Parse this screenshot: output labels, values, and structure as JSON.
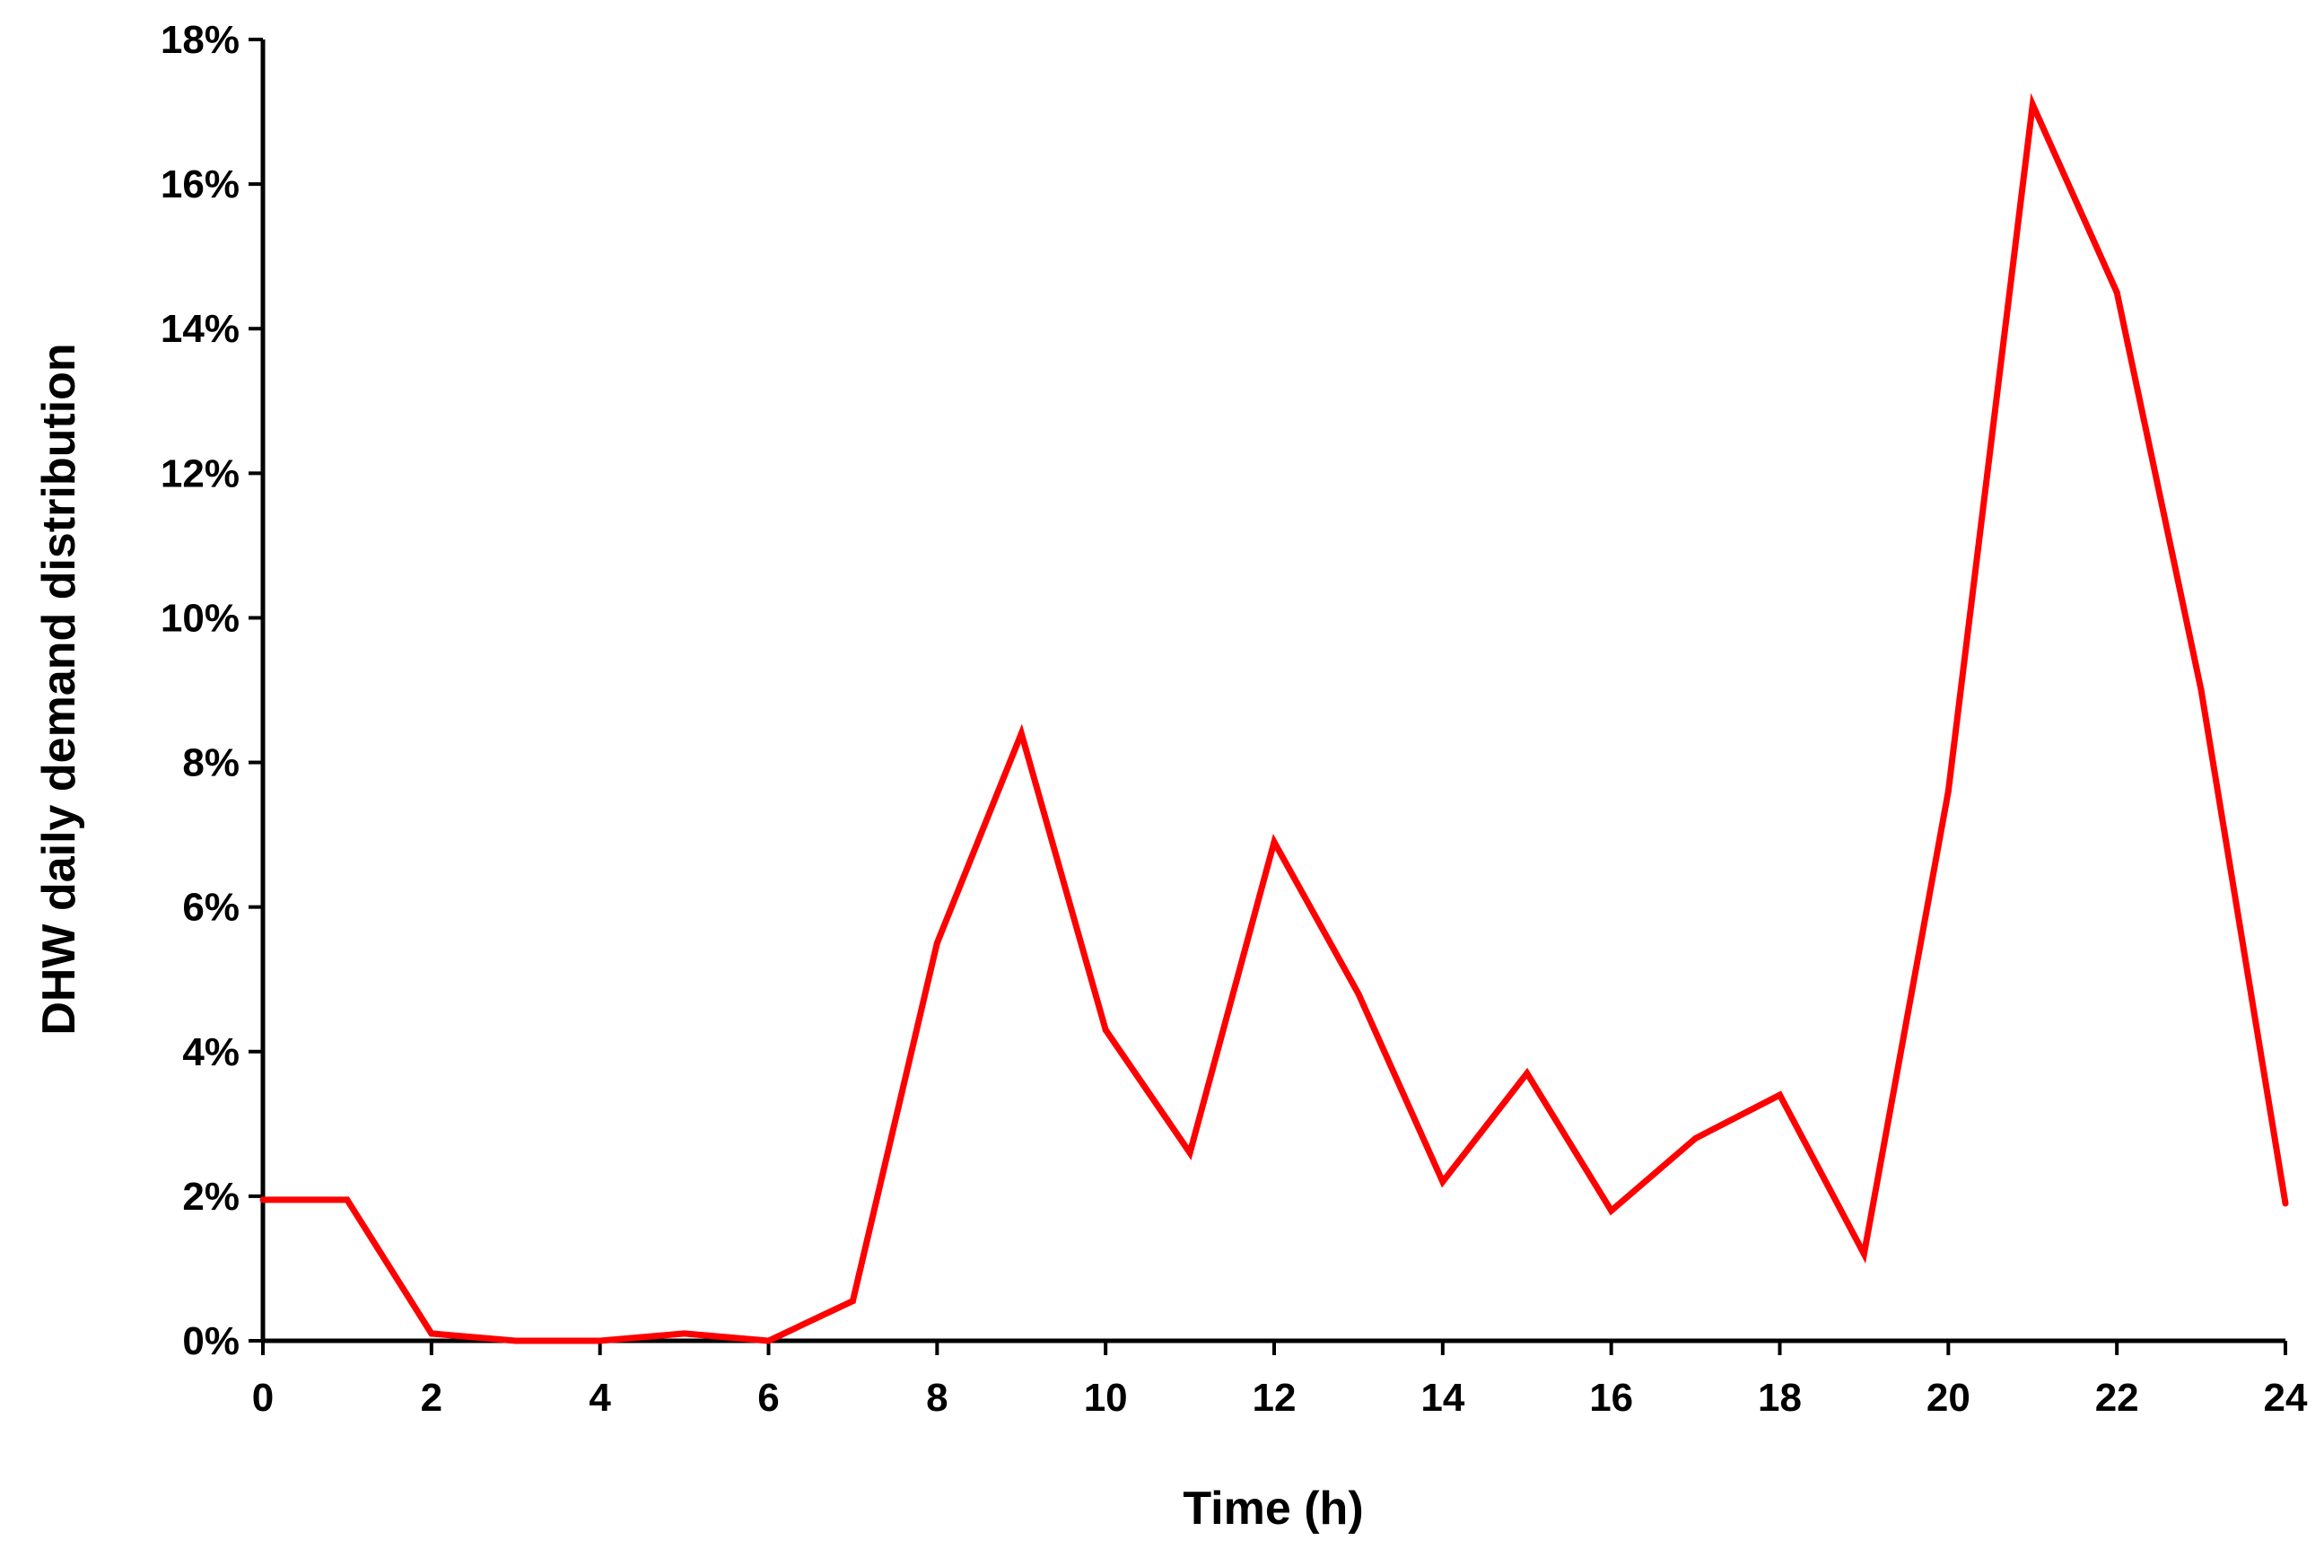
{
  "chart_data": {
    "type": "line",
    "title": "",
    "xlabel": "Time (h)",
    "ylabel": "DHW daily demand distribution",
    "xlim": [
      0,
      24
    ],
    "ylim": [
      0,
      18
    ],
    "x_ticks": [
      0,
      2,
      4,
      6,
      8,
      10,
      12,
      14,
      16,
      18,
      20,
      22,
      24
    ],
    "y_ticks": [
      0,
      2,
      4,
      6,
      8,
      10,
      12,
      14,
      16,
      18
    ],
    "x_tick_labels": [
      "0",
      "2",
      "4",
      "6",
      "8",
      "10",
      "12",
      "14",
      "16",
      "18",
      "20",
      "22",
      "24"
    ],
    "y_tick_labels": [
      "0%",
      "2%",
      "4%",
      "6%",
      "8%",
      "10%",
      "12%",
      "14%",
      "16%",
      "18%"
    ],
    "y_unit": "%",
    "grid": false,
    "legend": "none",
    "series": [
      {
        "color": "#ff0000",
        "x": [
          0,
          1,
          2,
          3,
          4,
          5,
          6,
          7,
          8,
          9,
          10,
          11,
          12,
          13,
          14,
          15,
          16,
          17,
          18,
          19,
          20,
          21,
          22,
          23,
          24
        ],
        "values": [
          1.95,
          1.95,
          0.1,
          0.0,
          0.0,
          0.1,
          0.0,
          0.55,
          5.5,
          8.4,
          4.3,
          2.6,
          6.9,
          4.8,
          2.2,
          3.7,
          1.8,
          2.8,
          3.4,
          1.2,
          7.6,
          17.1,
          14.5,
          9.0,
          1.9
        ]
      }
    ]
  }
}
